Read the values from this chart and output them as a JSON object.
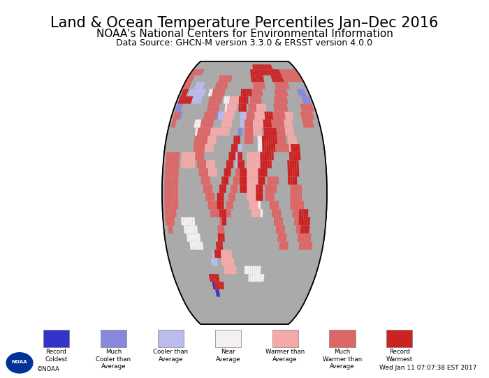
{
  "title": "Land & Ocean Temperature Percentiles Jan–Dec 2016",
  "subtitle": "NOAA's National Centers for Environmental Information",
  "datasource": "Data Source: GHCN-M version 3.3.0 & ERSST version 4.0.0",
  "timestamp": "Wed Jan 11 07:07:38 EST 2017",
  "background_color": "#ffffff",
  "ocean_bg_color": "#aaaaaa",
  "legend_labels": [
    "Record\nColdest",
    "Much\nCooler than\nAverage",
    "Cooler than\nAverage",
    "Near\nAverage",
    "Warmer than\nAverage",
    "Much\nWarmer than\nAverage",
    "Record\nWarmest"
  ],
  "legend_colors": [
    "#3333cc",
    "#8888dd",
    "#bbbbee",
    "#f5f0f0",
    "#f5aaaa",
    "#dd6666",
    "#cc2222"
  ],
  "title_fontsize": 15,
  "subtitle_fontsize": 11,
  "datasource_fontsize": 9
}
